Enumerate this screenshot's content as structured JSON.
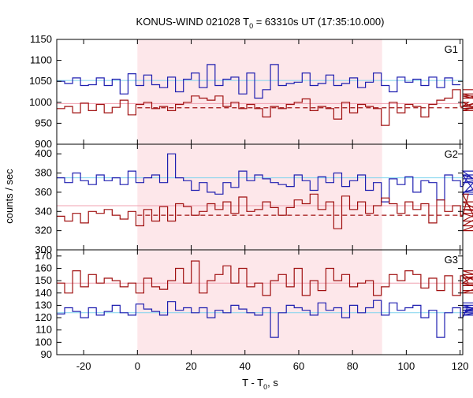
{
  "chart_data": {
    "type": "line",
    "title": {
      "main": "KONUS-WIND 021028 T",
      "sub": "0",
      "tail": " = 63310s UT (17:35:10.000)"
    },
    "xlabel": {
      "main": "T - T",
      "sub": "0",
      "tail": ", s"
    },
    "ylabel": "counts / sec",
    "xlim": [
      -30,
      121
    ],
    "xticks": [
      -20,
      0,
      20,
      40,
      60,
      80,
      100,
      120
    ],
    "highlight_interval": [
      0,
      91
    ],
    "colors": {
      "blue": "#1f1fb0",
      "red": "#a01010",
      "cyan_line": "#7fd4ee",
      "pink_line": "#f0a0b0",
      "highlight": "#fde7ea"
    },
    "bin_start": -30,
    "bin_width": 2.944,
    "panels": [
      {
        "label": "G1",
        "ylim": [
          900,
          1150
        ],
        "yticks": [
          900,
          950,
          1000,
          1050,
          1100,
          1150
        ],
        "levels": {
          "cyan": 1052,
          "pink": 997,
          "dashed": 987
        },
        "series": [
          {
            "color": "blue",
            "values": [
              1050,
              1045,
              1058,
              1040,
              1042,
              1058,
              1040,
              1055,
              1020,
              1068,
              1040,
              1065,
              1042,
              1035,
              1060,
              1025,
              1055,
              1070,
              1035,
              1090,
              1040,
              1055,
              1060,
              1020,
              1070,
              1010,
              1030,
              1090,
              1040,
              1045,
              1048,
              1070,
              1040,
              1045,
              1065,
              1040,
              1045,
              1058,
              1035,
              1048,
              1070,
              1040,
              1025,
              1060,
              1048,
              1055,
              1040,
              1060,
              1035,
              1058,
              1042
            ]
          },
          {
            "color": "red",
            "values": [
              985,
              990,
              975,
              998,
              980,
              995,
              975,
              988,
              1005,
              970,
              995,
              1000,
              985,
              990,
              980,
              995,
              1000,
              1015,
              1010,
              1005,
              1015,
              990,
              1000,
              985,
              995,
              985,
              965,
              990,
              985,
              995,
              1000,
              1008,
              980,
              990,
              985,
              960,
              1000,
              975,
              995,
              990,
              985,
              945,
              1000,
              975,
              995,
              990,
              965,
              995,
              1005,
              1010,
              1030,
              990,
              1000,
              985,
              990,
              1010,
              1015,
              990,
              1020,
              980,
              1030
            ]
          }
        ]
      },
      {
        "label": "G2",
        "ylim": [
          300,
          410
        ],
        "yticks": [
          300,
          320,
          340,
          360,
          380,
          400
        ],
        "levels": {
          "cyan": 375,
          "pink": 346,
          "dashed": 336
        },
        "series": [
          {
            "color": "blue",
            "values": [
              375,
              370,
              380,
              372,
              368,
              378,
              372,
              375,
              368,
              382,
              370,
              375,
              378,
              370,
              400,
              375,
              372,
              362,
              370,
              360,
              358,
              370,
              365,
              382,
              372,
              378,
              374,
              370,
              368,
              366,
              378,
              372,
              362,
              376,
              370,
              380,
              366,
              372,
              378,
              362,
              370,
              350,
              374,
              368,
              376,
              360,
              372,
              370,
              352,
              378,
              372,
              366,
              378,
              358,
              382,
              360,
              370,
              378,
              360,
              374
            ]
          },
          {
            "color": "red",
            "values": [
              335,
              330,
              338,
              328,
              340,
              338,
              342,
              336,
              332,
              340,
              325,
              342,
              330,
              345,
              330,
              348,
              345,
              336,
              340,
              348,
              342,
              350,
              338,
              355,
              340,
              342,
              350,
              344,
              336,
              344,
              352,
              348,
              358,
              342,
              350,
              322,
              356,
              342,
              350,
              338,
              346,
              354,
              348,
              338,
              350,
              342,
              348,
              328,
              352,
              340,
              346,
              335,
              358,
              330,
              342,
              338,
              325,
              350,
              320,
              345
            ]
          }
        ]
      },
      {
        "label": "G3",
        "ylim": [
          90,
          175
        ],
        "yticks": [
          90,
          100,
          110,
          120,
          130,
          140,
          150,
          160,
          170
        ],
        "levels": {
          "cyan": 124,
          "pink": 148,
          "dashed": null
        },
        "series": [
          {
            "color": "blue",
            "values": [
              123,
              128,
              125,
              120,
              128,
              122,
              125,
              130,
              124,
              122,
              131,
              127,
              125,
              122,
              133,
              126,
              128,
              124,
              128,
              120,
              126,
              124,
              130,
              127,
              124,
              122,
              128,
              104,
              124,
              130,
              128,
              126,
              122,
              132,
              126,
              128,
              120,
              130,
              124,
              128,
              134,
              122,
              132,
              126,
              128,
              130,
              120,
              126,
              104,
              124,
              128,
              120,
              130,
              126,
              124,
              130,
              122,
              128,
              126,
              132
            ]
          },
          {
            "color": "red",
            "values": [
              148,
              140,
              158,
              145,
              155,
              148,
              152,
              150,
              145,
              148,
              140,
              152,
              145,
              143,
              150,
              160,
              148,
              166,
              140,
              150,
              155,
              162,
              148,
              160,
              145,
              148,
              138,
              150,
              155,
              145,
              160,
              138,
              150,
              142,
              160,
              150,
              155,
              145,
              148,
              150,
              138,
              145,
              155,
              150,
              158,
              155,
              144,
              152,
              142,
              154,
              138,
              154,
              148,
              155,
              146,
              148,
              140,
              152,
              158,
              142
            ]
          }
        ]
      }
    ]
  }
}
